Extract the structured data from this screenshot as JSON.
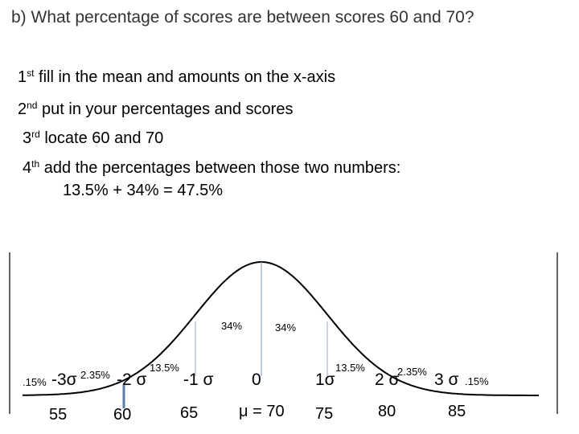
{
  "question": "b) What percentage of scores are between scores 60 and 70?",
  "steps": [
    {
      "num": "1",
      "sup": "st",
      "text": " fill in the mean and amounts on the x-axis"
    },
    {
      "num": "2",
      "sup": "nd",
      "text": " put in your percentages and scores"
    },
    {
      "num": "3",
      "sup": "rd",
      "text": " locate 60 and 70"
    },
    {
      "num": "4",
      "sup": "th",
      "text": " add the percentages between those two numbers:"
    }
  ],
  "equation": "13.5% + 34% = 47.5%",
  "percentages": {
    "left_tail": ".15%",
    "left_2": "2.35%",
    "left_1": "13.5%",
    "center_left": "34%",
    "center_right": "34%",
    "right_1": "13.5%",
    "right_2": "2.35%",
    "right_tail": ".15%"
  },
  "sigma_labels": [
    "-3σ",
    "-2 σ",
    "-1 σ",
    "0",
    "1σ",
    "2 σ",
    "3 σ"
  ],
  "scores": [
    "55",
    "60",
    "65",
    "μ = 70",
    "75",
    "80",
    "85"
  ],
  "colors": {
    "curve": "#000000",
    "marker": "#5b7fa6",
    "center_line": "#8fa8c8"
  }
}
